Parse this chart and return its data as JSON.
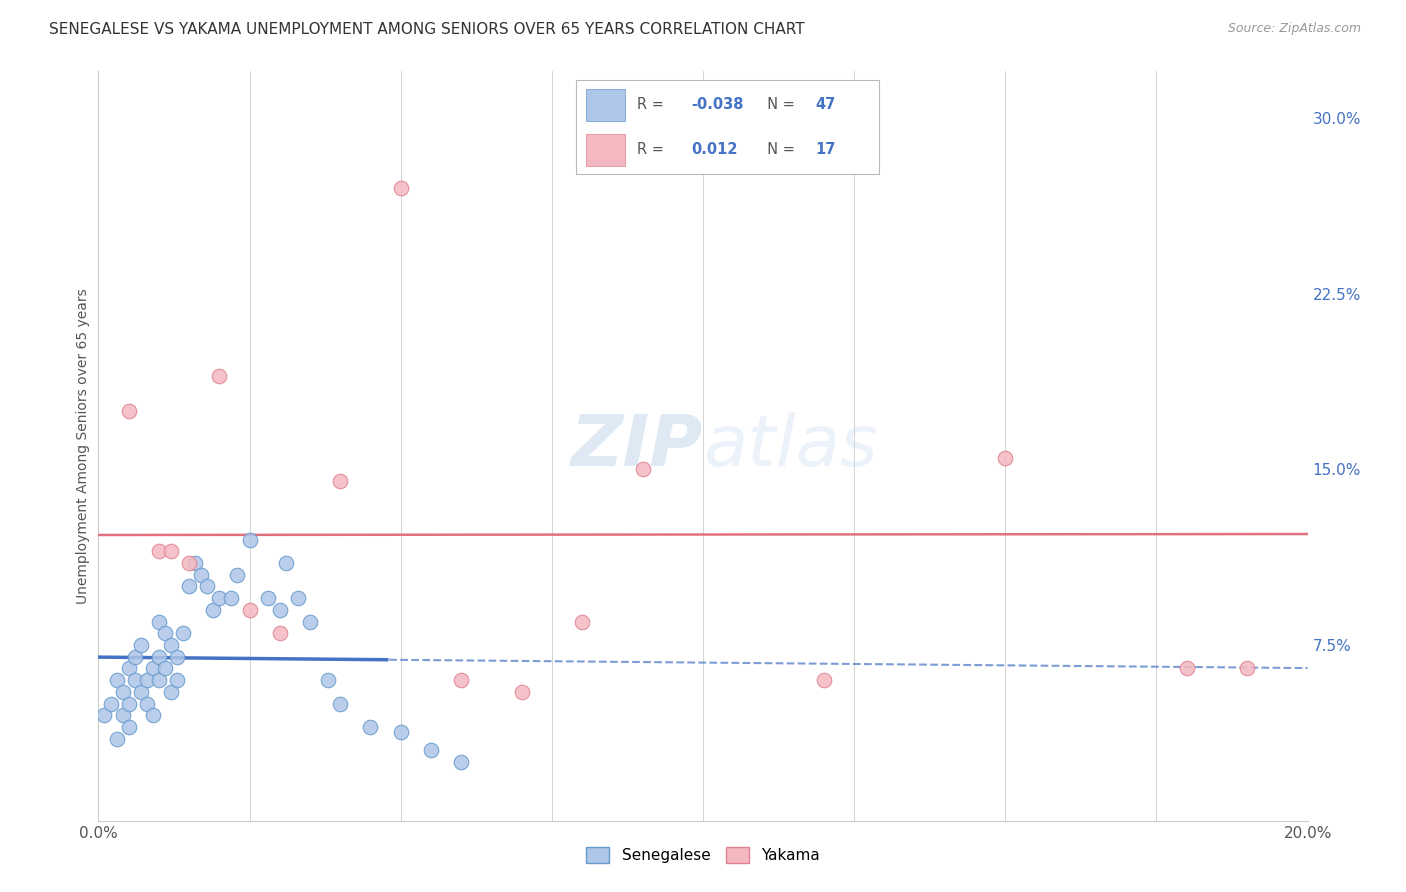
{
  "title": "SENEGALESE VS YAKAMA UNEMPLOYMENT AMONG SENIORS OVER 65 YEARS CORRELATION CHART",
  "source": "Source: ZipAtlas.com",
  "ylabel": "Unemployment Among Seniors over 65 years",
  "xlim": [
    0.0,
    0.2
  ],
  "ylim": [
    0.0,
    0.32
  ],
  "xticks": [
    0.0,
    0.025,
    0.05,
    0.075,
    0.1,
    0.125,
    0.15,
    0.175,
    0.2
  ],
  "yticks_right": [
    0.0,
    0.075,
    0.15,
    0.225,
    0.3
  ],
  "ytick_labels_right": [
    "",
    "7.5%",
    "15.0%",
    "22.5%",
    "30.0%"
  ],
  "senegalese_color": "#aec6e8",
  "senegalese_edge": "#6699cc",
  "yakama_color": "#f4b8c1",
  "yakama_edge": "#e08090",
  "line_blue": "#4472c4",
  "line_pink": "#e07080",
  "senegalese_R": -0.038,
  "senegalese_N": 47,
  "yakama_R": 0.012,
  "yakama_N": 17,
  "legend_label_senegalese": "Senegalese",
  "legend_label_yakama": "Yakama",
  "watermark_text": "ZIPatlas",
  "senegalese_x": [
    0.001,
    0.002,
    0.003,
    0.003,
    0.004,
    0.004,
    0.005,
    0.005,
    0.005,
    0.006,
    0.006,
    0.007,
    0.007,
    0.008,
    0.008,
    0.009,
    0.009,
    0.01,
    0.01,
    0.01,
    0.011,
    0.011,
    0.012,
    0.012,
    0.013,
    0.013,
    0.014,
    0.015,
    0.016,
    0.017,
    0.018,
    0.019,
    0.02,
    0.022,
    0.023,
    0.025,
    0.028,
    0.03,
    0.031,
    0.033,
    0.035,
    0.038,
    0.04,
    0.045,
    0.05,
    0.055,
    0.06
  ],
  "senegalese_y": [
    0.045,
    0.05,
    0.06,
    0.035,
    0.055,
    0.045,
    0.065,
    0.05,
    0.04,
    0.06,
    0.07,
    0.055,
    0.075,
    0.06,
    0.05,
    0.065,
    0.045,
    0.085,
    0.07,
    0.06,
    0.08,
    0.065,
    0.075,
    0.055,
    0.07,
    0.06,
    0.08,
    0.1,
    0.11,
    0.105,
    0.1,
    0.09,
    0.095,
    0.095,
    0.105,
    0.12,
    0.095,
    0.09,
    0.11,
    0.095,
    0.085,
    0.06,
    0.05,
    0.04,
    0.038,
    0.03,
    0.025
  ],
  "yakama_x": [
    0.005,
    0.01,
    0.012,
    0.015,
    0.02,
    0.025,
    0.03,
    0.04,
    0.05,
    0.06,
    0.07,
    0.08,
    0.09,
    0.12,
    0.15,
    0.18,
    0.19
  ],
  "yakama_y": [
    0.175,
    0.115,
    0.115,
    0.11,
    0.19,
    0.09,
    0.08,
    0.145,
    0.27,
    0.06,
    0.055,
    0.085,
    0.15,
    0.06,
    0.155,
    0.065,
    0.065
  ],
  "sen_line_solid_end": 0.048,
  "yakama_line_y_intercept": 0.122,
  "yakama_line_slope": 0.002
}
